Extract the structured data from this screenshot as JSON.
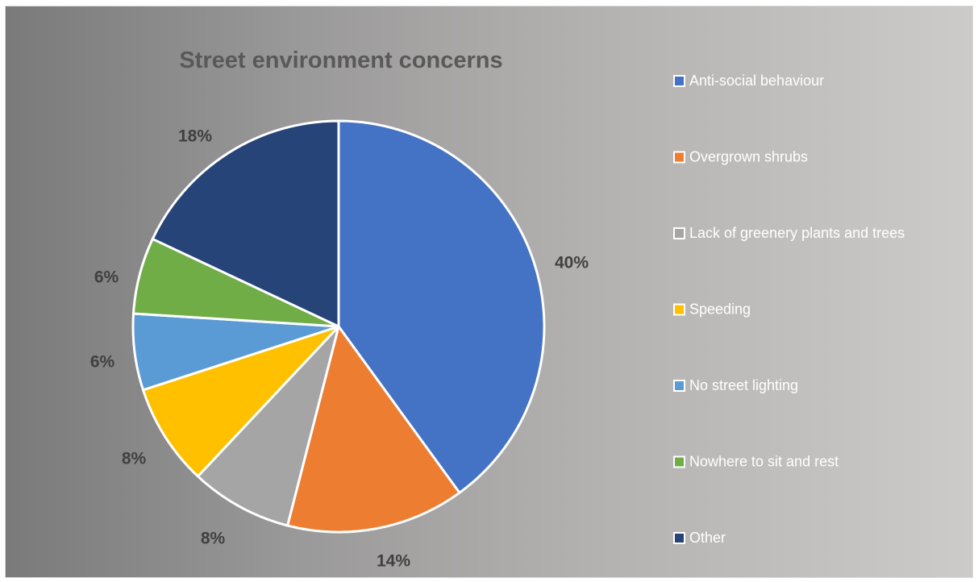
{
  "chart_data": {
    "type": "pie",
    "title": "Street environment concerns",
    "categories": [
      "Anti-social behaviour",
      "Overgrown shrubs",
      "Lack of greenery plants and trees",
      "Speeding",
      "No street lighting",
      "Nowhere to sit and rest",
      "Other"
    ],
    "values": [
      40,
      14,
      8,
      8,
      6,
      6,
      18
    ],
    "labels": [
      "40%",
      "14%",
      "8%",
      "8%",
      "6%",
      "6%",
      "18%"
    ],
    "colors": [
      "#4472c4",
      "#ed7d31",
      "#a5a5a5",
      "#ffc000",
      "#5b9bd5",
      "#70ad47",
      "#264478"
    ],
    "legend_position": "right"
  }
}
